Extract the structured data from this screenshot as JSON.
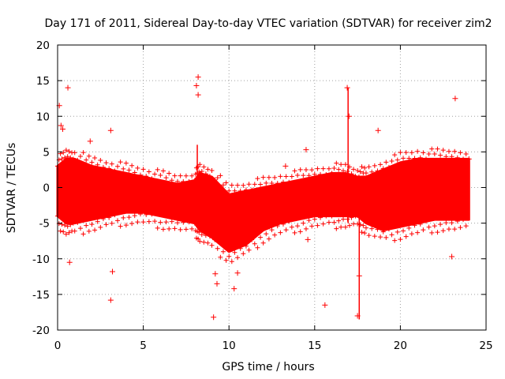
{
  "chart_data": {
    "type": "scatter",
    "title": "Day 171 of 2011, Sidereal Day-to-day VTEC variation (SDTVAR) for receiver zim2",
    "xlabel": "GPS time / hours",
    "ylabel": "SDTVAR / TECUs",
    "xlim": [
      0,
      25
    ],
    "ylim": [
      -20,
      20
    ],
    "x_ticks": [
      0,
      5,
      10,
      15,
      20,
      25
    ],
    "y_ticks": [
      -20,
      -15,
      -10,
      -5,
      0,
      5,
      10,
      15,
      20
    ],
    "grid": true,
    "marker": "+",
    "color": "#ff0000",
    "band": {
      "x": [
        0,
        0.5,
        1,
        2,
        3,
        4,
        5,
        6,
        7,
        8,
        8.3,
        9,
        10,
        11,
        12,
        13,
        14,
        15,
        16,
        16.8,
        17.5,
        18,
        19,
        20,
        21,
        22,
        23,
        24
      ],
      "upper": [
        3,
        4,
        4,
        3,
        2.5,
        2,
        1.5,
        1,
        0.5,
        1,
        2,
        1.5,
        -1,
        -0.5,
        0,
        0.5,
        1,
        1.5,
        2,
        2,
        1.5,
        1.5,
        2.5,
        3.5,
        4,
        4,
        4,
        4
      ],
      "lower": [
        -4,
        -5,
        -5,
        -4.5,
        -4,
        -3.5,
        -3.5,
        -4,
        -4.5,
        -5,
        -6,
        -7,
        -9,
        -8,
        -6,
        -5,
        -4.5,
        -4,
        -4,
        -4,
        -4,
        -5,
        -6,
        -5.5,
        -5,
        -4.5,
        -4.5,
        -4.5
      ]
    },
    "outliers": {
      "x": [
        0.1,
        0.2,
        0.3,
        0.6,
        0.7,
        1.9,
        3.1,
        3.2,
        3.1,
        8.1,
        8.2,
        8.2,
        9.1,
        9.3,
        9.2,
        10.3,
        10.5,
        13.3,
        14.5,
        14.6,
        15.6,
        16.9,
        17.0,
        17.5,
        17.6,
        18.7,
        23.0,
        23.2,
        24.0
      ],
      "y": [
        11.5,
        8.7,
        8.2,
        14,
        -10.5,
        6.5,
        8,
        -11.8,
        -15.8,
        14.3,
        15.5,
        13,
        -18.2,
        -13.5,
        -12.1,
        -14.2,
        -12,
        3,
        5.3,
        -7.3,
        -16.5,
        14,
        10,
        -18,
        -12.4,
        8,
        -9.7,
        12.5,
        4
      ]
    },
    "spikes": {
      "x": [
        8.15,
        16.95,
        17.6
      ],
      "top": [
        6,
        14,
        -4
      ],
      "bottom": [
        -3,
        -5,
        -18.5
      ]
    }
  }
}
